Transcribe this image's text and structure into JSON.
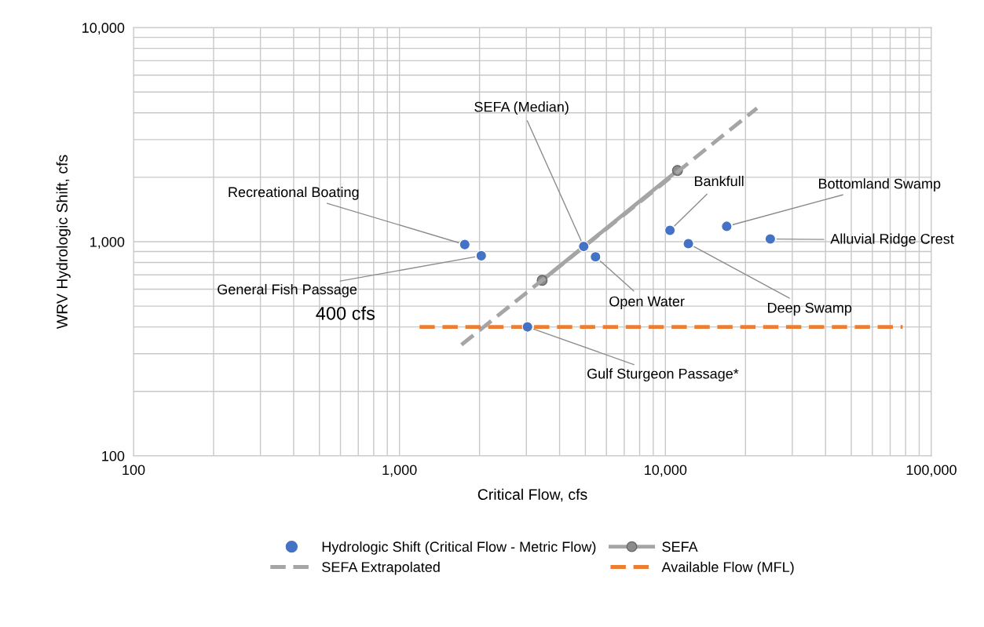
{
  "chart_data": {
    "type": "scatter",
    "xlabel": "Critical Flow, cfs",
    "ylabel": "WRV Hydrologic Shift, cfs",
    "log": "xy",
    "grid": true,
    "legend": "bottom",
    "xlim": [
      100,
      100000
    ],
    "ylim": [
      100,
      10000
    ],
    "xticks": [
      100,
      {
        "value": 200,
        "label": null
      },
      {
        "value": 300,
        "label": null
      },
      {
        "value": 400,
        "label": null
      },
      {
        "value": 500,
        "label": null
      },
      {
        "value": 600,
        "label": null
      },
      {
        "value": 700,
        "label": null
      },
      {
        "value": 800,
        "label": null
      },
      {
        "value": 900,
        "label": null
      },
      {
        "value": 1000,
        "label": "1,000"
      },
      {
        "value": 2000,
        "label": null
      },
      {
        "value": 3000,
        "label": null
      },
      {
        "value": 4000,
        "label": null
      },
      {
        "value": 5000,
        "label": null
      },
      {
        "value": 6000,
        "label": null
      },
      {
        "value": 7000,
        "label": null
      },
      {
        "value": 8000,
        "label": null
      },
      {
        "value": 9000,
        "label": null
      },
      {
        "value": 10000,
        "label": "10,000"
      },
      {
        "value": 20000,
        "label": null
      },
      {
        "value": 30000,
        "label": null
      },
      {
        "value": 40000,
        "label": null
      },
      {
        "value": 50000,
        "label": null
      },
      {
        "value": 60000,
        "label": null
      },
      {
        "value": 70000,
        "label": null
      },
      {
        "value": 80000,
        "label": null
      },
      {
        "value": 90000,
        "label": null
      },
      {
        "value": 100000,
        "label": "100,000"
      }
    ],
    "yticks": [
      100,
      {
        "value": 200,
        "label": null
      },
      {
        "value": 300,
        "label": null
      },
      {
        "value": 400,
        "label": null
      },
      {
        "value": 500,
        "label": null
      },
      {
        "value": 600,
        "label": null
      },
      {
        "value": 700,
        "label": null
      },
      {
        "value": 800,
        "label": null
      },
      {
        "value": 900,
        "label": null
      },
      {
        "value": 1000,
        "label": "1,000"
      },
      {
        "value": 2000,
        "label": null
      },
      {
        "value": 3000,
        "label": null
      },
      {
        "value": 4000,
        "label": null
      },
      {
        "value": 5000,
        "label": null
      },
      {
        "value": 6000,
        "label": null
      },
      {
        "value": 7000,
        "label": null
      },
      {
        "value": 8000,
        "label": null
      },
      {
        "value": 9000,
        "label": null
      },
      {
        "value": 10000,
        "label": "10,000"
      }
    ],
    "series": [
      {
        "name": "Hydrologic Shift (Critical Flow - Metric Flow)",
        "color": "#4472c4",
        "marker": "circle",
        "x": [
          1760,
          2030,
          4930,
          5460,
          3030,
          10400,
          12200,
          17000,
          24800
        ],
        "values": [
          970,
          860,
          950,
          850,
          400,
          1130,
          980,
          1180,
          1030
        ]
      },
      {
        "name": "SEFA",
        "type": "line",
        "color": "#a5a5a5",
        "marker": "circle",
        "line_style": "solid",
        "x": [
          3440,
          11100
        ],
        "values": [
          660,
          2150
        ]
      },
      {
        "name": "SEFA Extrapolated",
        "type": "line",
        "color": "#a5a5a5",
        "marker": "none",
        "line_style": "dashed",
        "x": [
          1710,
          22100
        ],
        "values": [
          330,
          4200
        ]
      },
      {
        "name": "Available Flow (MFL)",
        "type": "line",
        "color": "#ed7d31",
        "marker": "none",
        "line_style": "dashed",
        "x": [
          1190,
          78000
        ],
        "values": [
          400,
          400
        ]
      }
    ],
    "annotations": [
      {
        "text": "Recreational Boating",
        "x": 1760,
        "y": 970
      },
      {
        "text": "General Fish Passage",
        "x": 2030,
        "y": 860
      },
      {
        "text": "SEFA (Median)",
        "x": 4930,
        "y": 950
      },
      {
        "text": "Open Water",
        "x": 5460,
        "y": 850
      },
      {
        "text": "Gulf Sturgeon Passage*",
        "x": 3030,
        "y": 400
      },
      {
        "text": "Bankfull",
        "x": 10400,
        "y": 1130
      },
      {
        "text": "Deep Swamp",
        "x": 12200,
        "y": 980
      },
      {
        "text": "Bottomland Swamp",
        "x": 17000,
        "y": 1180
      },
      {
        "text": "Alluvial Ridge Crest",
        "x": 24800,
        "y": 1030
      },
      {
        "text": "400 cfs",
        "x": 1190,
        "y": 400
      }
    ]
  }
}
